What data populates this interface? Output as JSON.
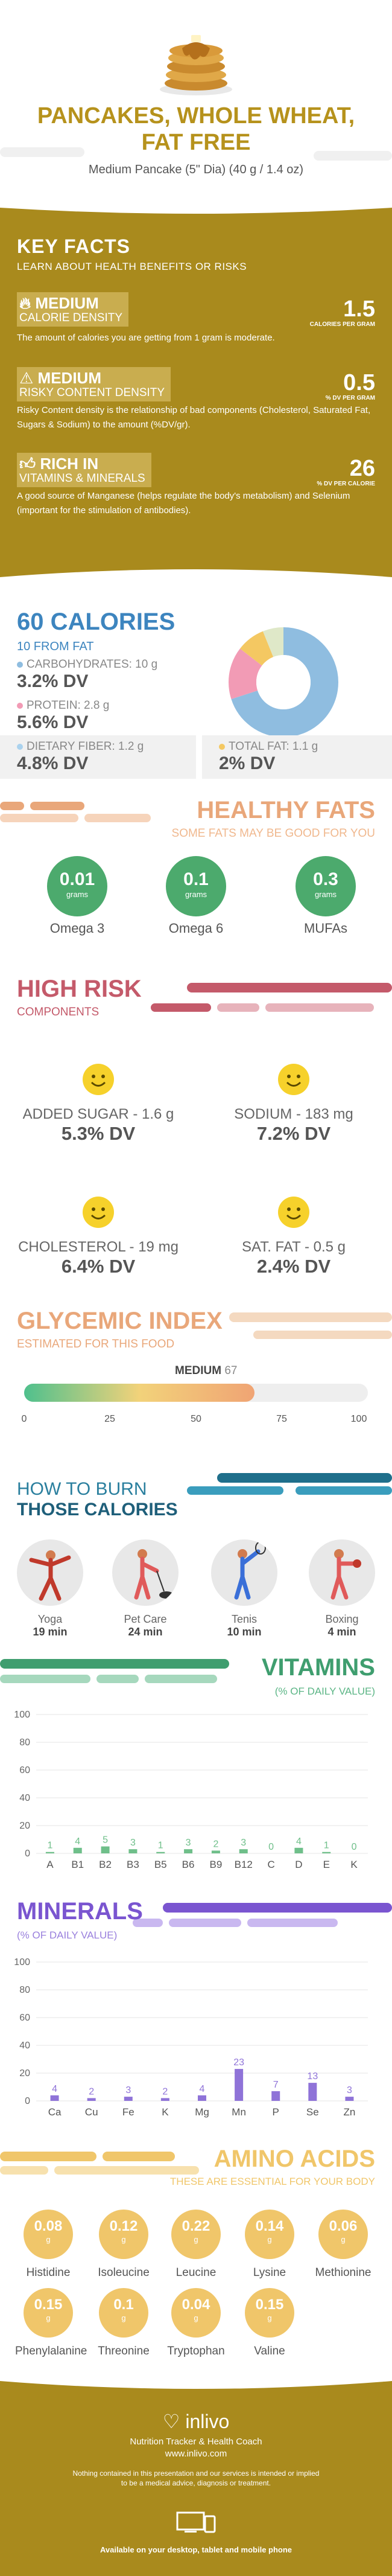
{
  "header": {
    "title_line1": "PANCAKES, WHOLE WHEAT,",
    "title_line2": "FAT FREE",
    "subtitle": "Medium Pancake (5\" Dia) (40 g / 1.4 oz)"
  },
  "key_facts": {
    "title": "KEY FACTS",
    "subtitle": "LEARN ABOUT HEALTH BENEFITS OR RISKS",
    "items": [
      {
        "icon": "fire-icon",
        "level": "MEDIUM",
        "label": "CALORIE DENSITY",
        "value": "1.5",
        "unit": "CALORIES PER GRAM",
        "desc": "The amount of calories you are getting from 1 gram is moderate."
      },
      {
        "icon": "warning-icon",
        "level": "MEDIUM",
        "label": "RISKY CONTENT DENSITY",
        "value": "0.5",
        "unit": "% DV PER GRAM",
        "desc": "Risky Content density is the relationship of bad components (Cholesterol, Saturated Fat, Sugars & Sodium) to the amount (%DV/gr)."
      },
      {
        "icon": "thumbs-up-icon",
        "level": "RICH IN",
        "label": "VITAMINS & MINERALS",
        "value": "26",
        "unit": "% DV PER CALORIE",
        "desc": "A good source of Manganese (helps regulate the body's metabolism) and Selenium (important for the stimulation of antibodies)."
      }
    ]
  },
  "calories": {
    "title": "60 CALORIES",
    "subtitle": "10 FROM FAT",
    "nutrients": [
      {
        "label": "CARBOHYDRATES: 10 g",
        "dv": "3.2% DV",
        "color": "#8fbde0"
      },
      {
        "label": "PROTEIN: 2.8 g",
        "dv": "5.6% DV",
        "color": "#f29bb5"
      },
      {
        "label": "DIETARY FIBER: 1.2 g",
        "dv": "4.8% DV",
        "color": "#aad2ee"
      },
      {
        "label": "TOTAL FAT: 1.1 g",
        "dv": "2% DV",
        "color": "#f4c862"
      }
    ]
  },
  "fats": {
    "title": "HEALTHY FATS",
    "subtitle": "SOME FATS MAY BE GOOD FOR YOU",
    "items": [
      {
        "value": "0.01",
        "unit": "grams",
        "name": "Omega 3"
      },
      {
        "value": "0.1",
        "unit": "grams",
        "name": "Omega 6"
      },
      {
        "value": "0.3",
        "unit": "grams",
        "name": "MUFAs"
      }
    ]
  },
  "risk": {
    "title": "HIGH RISK",
    "subtitle": "COMPONENTS",
    "items": [
      {
        "label": "ADDED SUGAR - 1.6 g",
        "dv": "5.3% DV"
      },
      {
        "label": "SODIUM - 183 mg",
        "dv": "7.2% DV"
      },
      {
        "label": "CHOLESTEROL - 19 mg",
        "dv": "6.4% DV"
      },
      {
        "label": "SAT. FAT - 0.5 g",
        "dv": "2.4% DV"
      }
    ]
  },
  "gi": {
    "title": "GLYCEMIC INDEX",
    "subtitle": "ESTIMATED FOR THIS FOOD",
    "level": "MEDIUM",
    "value": "67",
    "ticks": [
      "0",
      "25",
      "50",
      "75",
      "100"
    ]
  },
  "burn": {
    "title_line1": "HOW TO BURN",
    "title_line2": "THOSE CALORIES",
    "activities": [
      {
        "name": "Yoga",
        "time": "19 min",
        "icon": "yoga-icon"
      },
      {
        "name": "Pet Care",
        "time": "24 min",
        "icon": "dog-walking-icon"
      },
      {
        "name": "Tenis",
        "time": "10 min",
        "icon": "tennis-icon"
      },
      {
        "name": "Boxing",
        "time": "4 min",
        "icon": "boxing-icon"
      }
    ]
  },
  "chart_data": [
    {
      "type": "bar",
      "title": "VITAMINS",
      "subtitle": "(% OF DAILY VALUE)",
      "categories": [
        "A",
        "B1",
        "B2",
        "B3",
        "B5",
        "B6",
        "B9",
        "B12",
        "C",
        "D",
        "E",
        "K"
      ],
      "values": [
        1,
        4,
        5,
        3,
        1,
        3,
        2,
        3,
        0,
        4,
        1,
        0
      ],
      "ylim": [
        0,
        100
      ],
      "yticks": [
        "0",
        "20",
        "40",
        "60",
        "80",
        "100"
      ],
      "color": "#6fbf8a"
    },
    {
      "type": "bar",
      "title": "MINERALS",
      "subtitle": "(% OF DAILY VALUE)",
      "categories": [
        "Ca",
        "Cu",
        "Fe",
        "K",
        "Mg",
        "Mn",
        "P",
        "Se",
        "Zn"
      ],
      "values": [
        4,
        2,
        3,
        2,
        4,
        23,
        7,
        13,
        3
      ],
      "ylim": [
        0,
        100
      ],
      "yticks": [
        "0",
        "20",
        "40",
        "60",
        "80",
        "100"
      ],
      "color": "#8f73d8"
    }
  ],
  "amino": {
    "title": "AMINO ACIDS",
    "subtitle": "THESE ARE ESSENTIAL FOR YOUR BODY",
    "unit": "g",
    "items": [
      {
        "value": "0.08",
        "name": "Histidine"
      },
      {
        "value": "0.12",
        "name": "Isoleucine"
      },
      {
        "value": "0.22",
        "name": "Leucine"
      },
      {
        "value": "0.14",
        "name": "Lysine"
      },
      {
        "value": "0.06",
        "name": "Methionine"
      },
      {
        "value": "0.15",
        "name": "Phenylalanine"
      },
      {
        "value": "0.1",
        "name": "Threonine"
      },
      {
        "value": "0.04",
        "name": "Tryptophan"
      },
      {
        "value": "0.15",
        "name": "Valine"
      }
    ]
  },
  "footer": {
    "brand": "inlivo",
    "tagline": "Nutrition Tracker & Health Coach",
    "url": "www.inlivo.com",
    "disclaimer_line1": "Nothing contained in this presentation and our services is intended or implied",
    "disclaimer_line2": "to be a medical advice, diagnosis or treatment.",
    "available": "Available on your desktop, tablet and mobile phone"
  }
}
